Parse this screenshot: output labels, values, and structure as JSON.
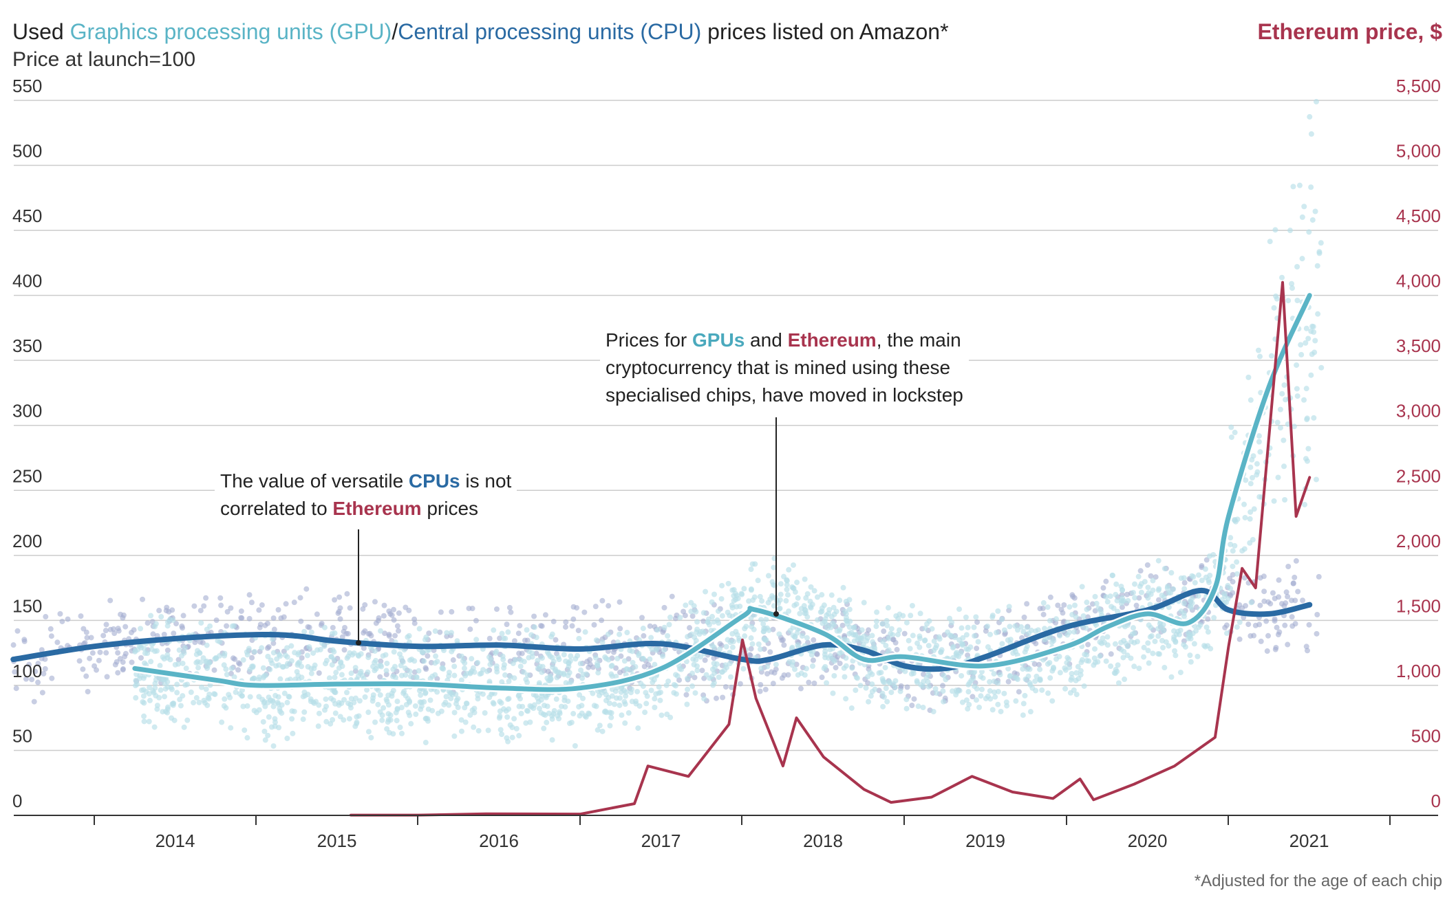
{
  "header": {
    "title_prefix": "Used ",
    "title_gpu": "Graphics processing units (GPU)",
    "title_sep": "/",
    "title_cpu": "Central processing units (CPU)",
    "title_suffix": " prices listed on Amazon*",
    "subtitle": "Price at launch=100",
    "right_title": "Ethereum price, $"
  },
  "annotations": {
    "cpu_note": {
      "line1_prefix": "The value of versatile ",
      "line1_cpu": "CPUs",
      "line1_suffix": " is not",
      "line2_prefix": "correlated to ",
      "line2_eth": "Ethereum",
      "line2_suffix": " prices"
    },
    "gpu_note": {
      "line1_prefix": "Prices for ",
      "line1_gpu": "GPUs",
      "line1_mid": " and ",
      "line1_eth": "Ethereum",
      "line1_suffix": ", the main",
      "line2": "cryptocurrency that is mined using these",
      "line3": "specialised chips, have moved in lockstep"
    }
  },
  "footnote": "*Adjusted for the age of each chip",
  "colors": {
    "gpu": "#5ab4c6",
    "gpu_dots": "#b7dfe8",
    "cpu": "#2a6aa3",
    "cpu_dots": "#a3aed0",
    "eth": "#a8344e",
    "grid": "#cccccc"
  },
  "chart_data": {
    "type": "line",
    "x_axis": {
      "ticks": [
        "2014",
        "2015",
        "2016",
        "2017",
        "2018",
        "2019",
        "2020",
        "2021"
      ],
      "range": [
        "2013-07",
        "2021-12"
      ]
    },
    "y_left": {
      "label": "Price at launch=100",
      "ticks": [
        "0",
        "50",
        "100",
        "150",
        "200",
        "250",
        "300",
        "350",
        "400",
        "450",
        "500",
        "550"
      ],
      "range": [
        0,
        550
      ]
    },
    "y_right": {
      "label": "Ethereum price, $",
      "ticks": [
        "0",
        "500",
        "1,000",
        "1,500",
        "2,000",
        "2,500",
        "3,000",
        "3,500",
        "4,000",
        "4,500",
        "5,000",
        "5,500"
      ],
      "range": [
        0,
        5500
      ]
    },
    "series": [
      {
        "name": "Central processing units (CPU)",
        "axis": "left",
        "points": [
          [
            "2013-07",
            120
          ],
          [
            "2014-01",
            130
          ],
          [
            "2014-07",
            136
          ],
          [
            "2015-01",
            139
          ],
          [
            "2015-04",
            138
          ],
          [
            "2015-07",
            134
          ],
          [
            "2016-01",
            130
          ],
          [
            "2016-07",
            131
          ],
          [
            "2017-01",
            128
          ],
          [
            "2017-07",
            132
          ],
          [
            "2018-01",
            120
          ],
          [
            "2018-03",
            120
          ],
          [
            "2018-07",
            131
          ],
          [
            "2018-10",
            127
          ],
          [
            "2019-01",
            115
          ],
          [
            "2019-04",
            113
          ],
          [
            "2019-07",
            122
          ],
          [
            "2020-01",
            145
          ],
          [
            "2020-07",
            158
          ],
          [
            "2020-11",
            173
          ],
          [
            "2021-01",
            158
          ],
          [
            "2021-04",
            155
          ],
          [
            "2021-07",
            162
          ]
        ]
      },
      {
        "name": "Graphics processing units (GPU)",
        "axis": "left",
        "points": [
          [
            "2014-04",
            113
          ],
          [
            "2014-10",
            104
          ],
          [
            "2015-01",
            100
          ],
          [
            "2015-07",
            101
          ],
          [
            "2016-01",
            101
          ],
          [
            "2016-07",
            98
          ],
          [
            "2017-01",
            98
          ],
          [
            "2017-07",
            113
          ],
          [
            "2018-01",
            153
          ],
          [
            "2018-02",
            158
          ],
          [
            "2018-07",
            140
          ],
          [
            "2018-10",
            120
          ],
          [
            "2019-01",
            122
          ],
          [
            "2019-07",
            115
          ],
          [
            "2020-01",
            130
          ],
          [
            "2020-04",
            145
          ],
          [
            "2020-07",
            155
          ],
          [
            "2020-10",
            148
          ],
          [
            "2020-12",
            175
          ],
          [
            "2021-01",
            230
          ],
          [
            "2021-04",
            330
          ],
          [
            "2021-07",
            400
          ]
        ]
      },
      {
        "name": "Ethereum",
        "axis": "right",
        "points": [
          [
            "2015-08",
            2
          ],
          [
            "2016-01",
            2
          ],
          [
            "2016-06",
            12
          ],
          [
            "2017-01",
            10
          ],
          [
            "2017-05",
            90
          ],
          [
            "2017-06",
            380
          ],
          [
            "2017-09",
            300
          ],
          [
            "2017-12",
            700
          ],
          [
            "2018-01",
            1350
          ],
          [
            "2018-02",
            900
          ],
          [
            "2018-04",
            380
          ],
          [
            "2018-05",
            750
          ],
          [
            "2018-07",
            450
          ],
          [
            "2018-10",
            200
          ],
          [
            "2018-12",
            100
          ],
          [
            "2019-03",
            140
          ],
          [
            "2019-06",
            300
          ],
          [
            "2019-09",
            180
          ],
          [
            "2019-12",
            130
          ],
          [
            "2020-02",
            280
          ],
          [
            "2020-03",
            120
          ],
          [
            "2020-06",
            240
          ],
          [
            "2020-09",
            380
          ],
          [
            "2020-12",
            600
          ],
          [
            "2021-01",
            1300
          ],
          [
            "2021-02",
            1900
          ],
          [
            "2021-03",
            1750
          ],
          [
            "2021-05",
            4100
          ],
          [
            "2021-06",
            2300
          ],
          [
            "2021-07",
            2600
          ]
        ]
      }
    ],
    "legend": "none",
    "grid": true
  }
}
